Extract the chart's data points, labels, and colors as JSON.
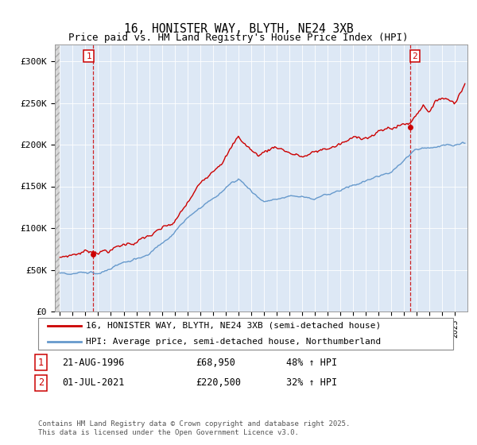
{
  "title": "16, HONISTER WAY, BLYTH, NE24 3XB",
  "subtitle": "Price paid vs. HM Land Registry's House Price Index (HPI)",
  "ylim": [
    0,
    320000
  ],
  "yticks": [
    0,
    50000,
    100000,
    150000,
    200000,
    250000,
    300000
  ],
  "ytick_labels": [
    "£0",
    "£50K",
    "£100K",
    "£150K",
    "£200K",
    "£250K",
    "£300K"
  ],
  "sale1_x": 1996.622,
  "sale1_price": 68950,
  "sale2_x": 2021.5,
  "sale2_price": 220500,
  "legend_line1": "16, HONISTER WAY, BLYTH, NE24 3XB (semi-detached house)",
  "legend_line2": "HPI: Average price, semi-detached house, Northumberland",
  "footnote": "Contains HM Land Registry data © Crown copyright and database right 2025.\nThis data is licensed under the Open Government Licence v3.0.",
  "red_color": "#cc0000",
  "blue_color": "#6699cc",
  "plot_bg_color": "#dde8f5",
  "hatch_color": "#c8c8c8",
  "xlim_left": 1993.6,
  "xlim_right": 2026.0,
  "xstart_data": 1994.0
}
